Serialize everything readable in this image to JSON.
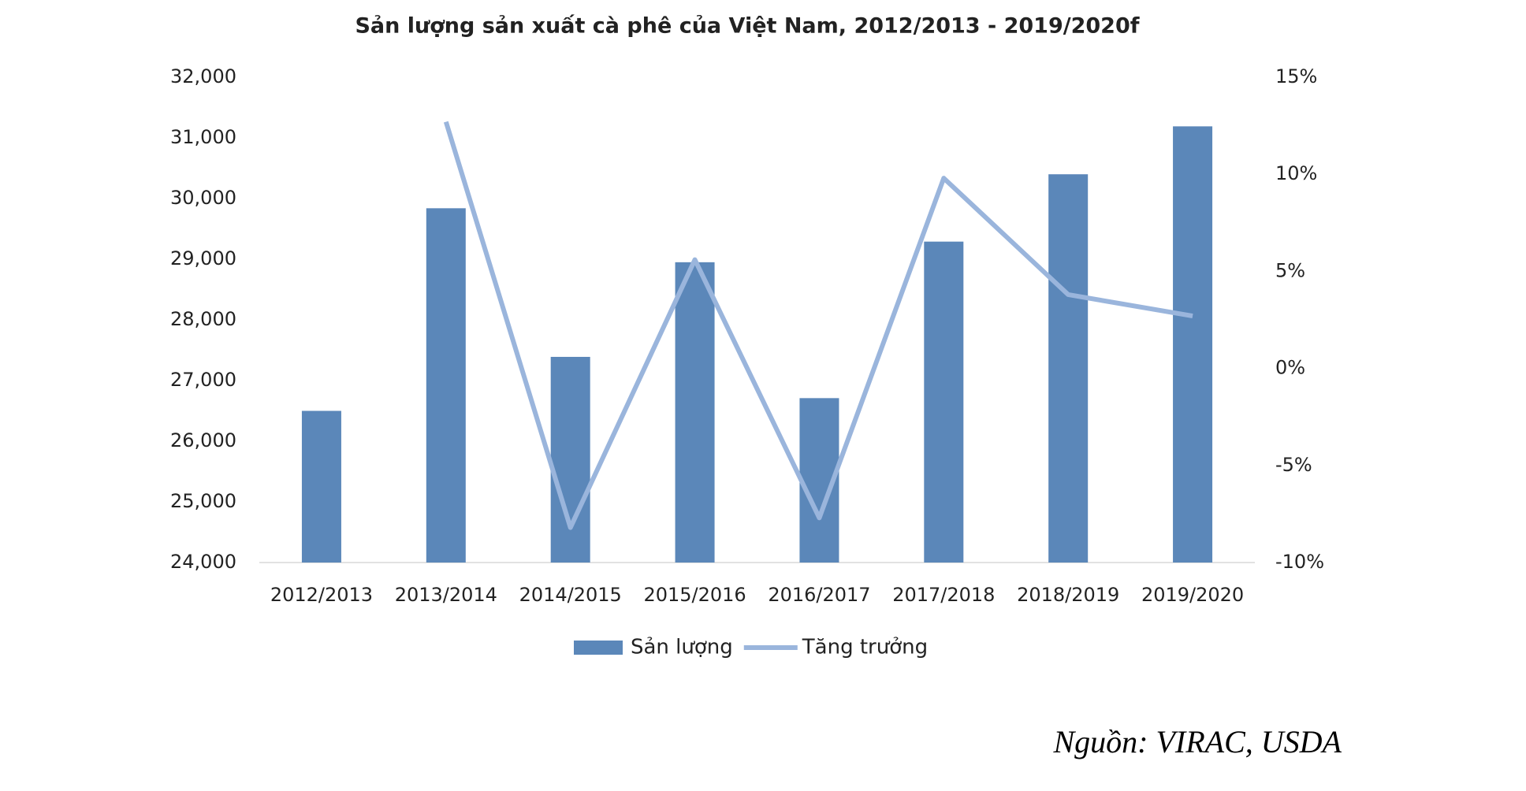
{
  "chart_data": {
    "type": "bar-line",
    "title": "Sản lượng sản xuất cà phê của Việt Nam, 2012/2013  - 2019/2020f",
    "categories": [
      "2012/2013",
      "2013/2014",
      "2014/2015",
      "2015/2016",
      "2016/2017",
      "2017/2018",
      "2018/2019",
      "2019/2020"
    ],
    "series": [
      {
        "name": "Sản lượng",
        "type": "bar",
        "color": "#5b87b9",
        "values": [
          26500,
          29840,
          27390,
          28950,
          26710,
          29290,
          30400,
          31190
        ]
      },
      {
        "name": "Tăng trưởng",
        "type": "line",
        "axis": "y2",
        "color": "#9ab5dc",
        "values": [
          null,
          12.7,
          -8.2,
          5.6,
          -7.7,
          9.8,
          3.8,
          2.7
        ]
      }
    ],
    "ylim": [
      24000,
      32000
    ],
    "yticks": [
      {
        "value": 24000,
        "label": "24,000"
      },
      {
        "value": 25000,
        "label": "25,000"
      },
      {
        "value": 26000,
        "label": "26,000"
      },
      {
        "value": 27000,
        "label": "27,000"
      },
      {
        "value": 28000,
        "label": "28,000"
      },
      {
        "value": 29000,
        "label": "29,000"
      },
      {
        "value": 30000,
        "label": "30,000"
      },
      {
        "value": 31000,
        "label": "31,000"
      },
      {
        "value": 32000,
        "label": "32,000"
      }
    ],
    "y2lim": [
      -10,
      15
    ],
    "y2ticks": [
      {
        "value": -10,
        "label": "-10%"
      },
      {
        "value": -5,
        "label": "-5%"
      },
      {
        "value": 0,
        "label": "0%"
      },
      {
        "value": 5,
        "label": "5%"
      },
      {
        "value": 10,
        "label": "10%"
      },
      {
        "value": 15,
        "label": "15%"
      }
    ],
    "grid": false,
    "legend": "bottom",
    "source": "Nguồn: VIRAC, USDA"
  }
}
